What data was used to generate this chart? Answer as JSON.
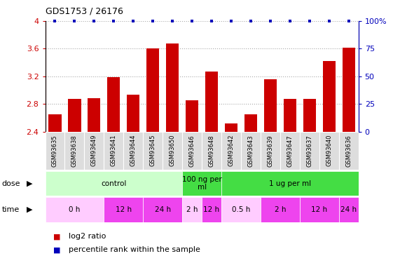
{
  "title": "GDS1753 / 26176",
  "samples": [
    "GSM93635",
    "GSM93638",
    "GSM93649",
    "GSM93641",
    "GSM93644",
    "GSM93645",
    "GSM93650",
    "GSM93646",
    "GSM93648",
    "GSM93642",
    "GSM93643",
    "GSM93639",
    "GSM93647",
    "GSM93637",
    "GSM93640",
    "GSM93636"
  ],
  "log2_values": [
    2.65,
    2.87,
    2.88,
    3.19,
    2.93,
    3.6,
    3.67,
    2.85,
    3.27,
    2.52,
    2.65,
    3.16,
    2.87,
    2.87,
    3.42,
    3.61
  ],
  "percentile_values": [
    100,
    100,
    100,
    100,
    100,
    100,
    100,
    100,
    100,
    100,
    100,
    100,
    100,
    100,
    100,
    100
  ],
  "bar_color": "#cc0000",
  "dot_color": "#0000bb",
  "ylim_left": [
    2.4,
    4.0
  ],
  "ylim_right": [
    0,
    100
  ],
  "yticks_left": [
    2.4,
    2.8,
    3.2,
    3.6,
    4.0
  ],
  "yticks_right": [
    0,
    25,
    50,
    75,
    100
  ],
  "ytick_labels_left": [
    "2.4",
    "2.8",
    "3.2",
    "3.6",
    "4"
  ],
  "ytick_labels_right": [
    "0",
    "25",
    "50",
    "75",
    "100%"
  ],
  "dose_groups": [
    {
      "label": "control",
      "start": 0,
      "end": 7,
      "color": "#ccffcc"
    },
    {
      "label": "100 ng per\nml",
      "start": 7,
      "end": 9,
      "color": "#44dd44"
    },
    {
      "label": "1 ug per ml",
      "start": 9,
      "end": 16,
      "color": "#44dd44"
    }
  ],
  "time_groups": [
    {
      "label": "0 h",
      "start": 0,
      "end": 3,
      "color": "#ffccff"
    },
    {
      "label": "12 h",
      "start": 3,
      "end": 5,
      "color": "#ee44ee"
    },
    {
      "label": "24 h",
      "start": 5,
      "end": 7,
      "color": "#ee44ee"
    },
    {
      "label": "2 h",
      "start": 7,
      "end": 8,
      "color": "#ffccff"
    },
    {
      "label": "12 h",
      "start": 8,
      "end": 9,
      "color": "#ee44ee"
    },
    {
      "label": "0.5 h",
      "start": 9,
      "end": 11,
      "color": "#ffccff"
    },
    {
      "label": "2 h",
      "start": 11,
      "end": 13,
      "color": "#ee44ee"
    },
    {
      "label": "12 h",
      "start": 13,
      "end": 15,
      "color": "#ee44ee"
    },
    {
      "label": "24 h",
      "start": 15,
      "end": 16,
      "color": "#ee44ee"
    }
  ],
  "legend_items": [
    {
      "label": "log2 ratio",
      "color": "#cc0000"
    },
    {
      "label": "percentile rank within the sample",
      "color": "#0000bb"
    }
  ],
  "grid_color": "#aaaaaa",
  "tick_label_color_left": "#cc0000",
  "tick_label_color_right": "#0000bb",
  "sample_box_color": "#dddddd"
}
